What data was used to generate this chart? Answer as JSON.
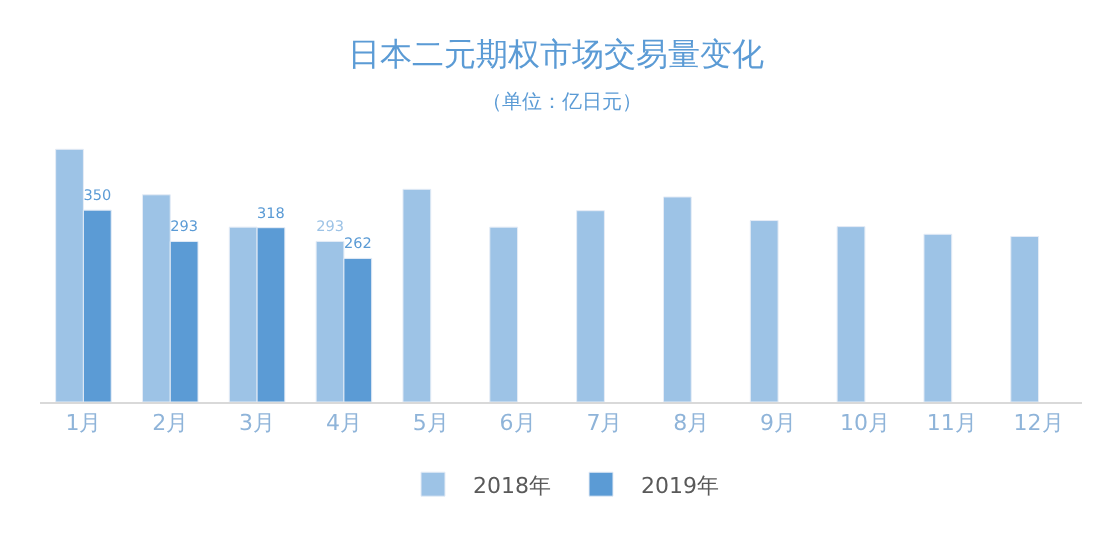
{
  "chart_data": {
    "type": "bar",
    "title": "日本二元期权市场交易量变化",
    "subtitle": "（单位：亿日元）",
    "categories": [
      "1月",
      "2月",
      "3月",
      "4月",
      "5月",
      "6月",
      "7月",
      "8月",
      "9月",
      "10月",
      "11月",
      "12月"
    ],
    "series": [
      {
        "name": "2018年",
        "color": "#9dc3e6",
        "values": [
          461,
          378,
          319,
          293,
          388,
          319,
          349,
          374,
          331,
          320,
          306,
          302
        ],
        "value_labels": [
          null,
          null,
          null,
          "293",
          null,
          null,
          null,
          null,
          null,
          null,
          null,
          null
        ]
      },
      {
        "name": "2019年",
        "color": "#5b9bd5",
        "values": [
          350,
          293,
          318,
          262,
          null,
          null,
          null,
          null,
          null,
          null,
          null,
          null
        ],
        "value_labels": [
          "350",
          "293",
          "318",
          "262",
          null,
          null,
          null,
          null,
          null,
          null,
          null,
          null
        ]
      }
    ],
    "legend": "bottom"
  }
}
